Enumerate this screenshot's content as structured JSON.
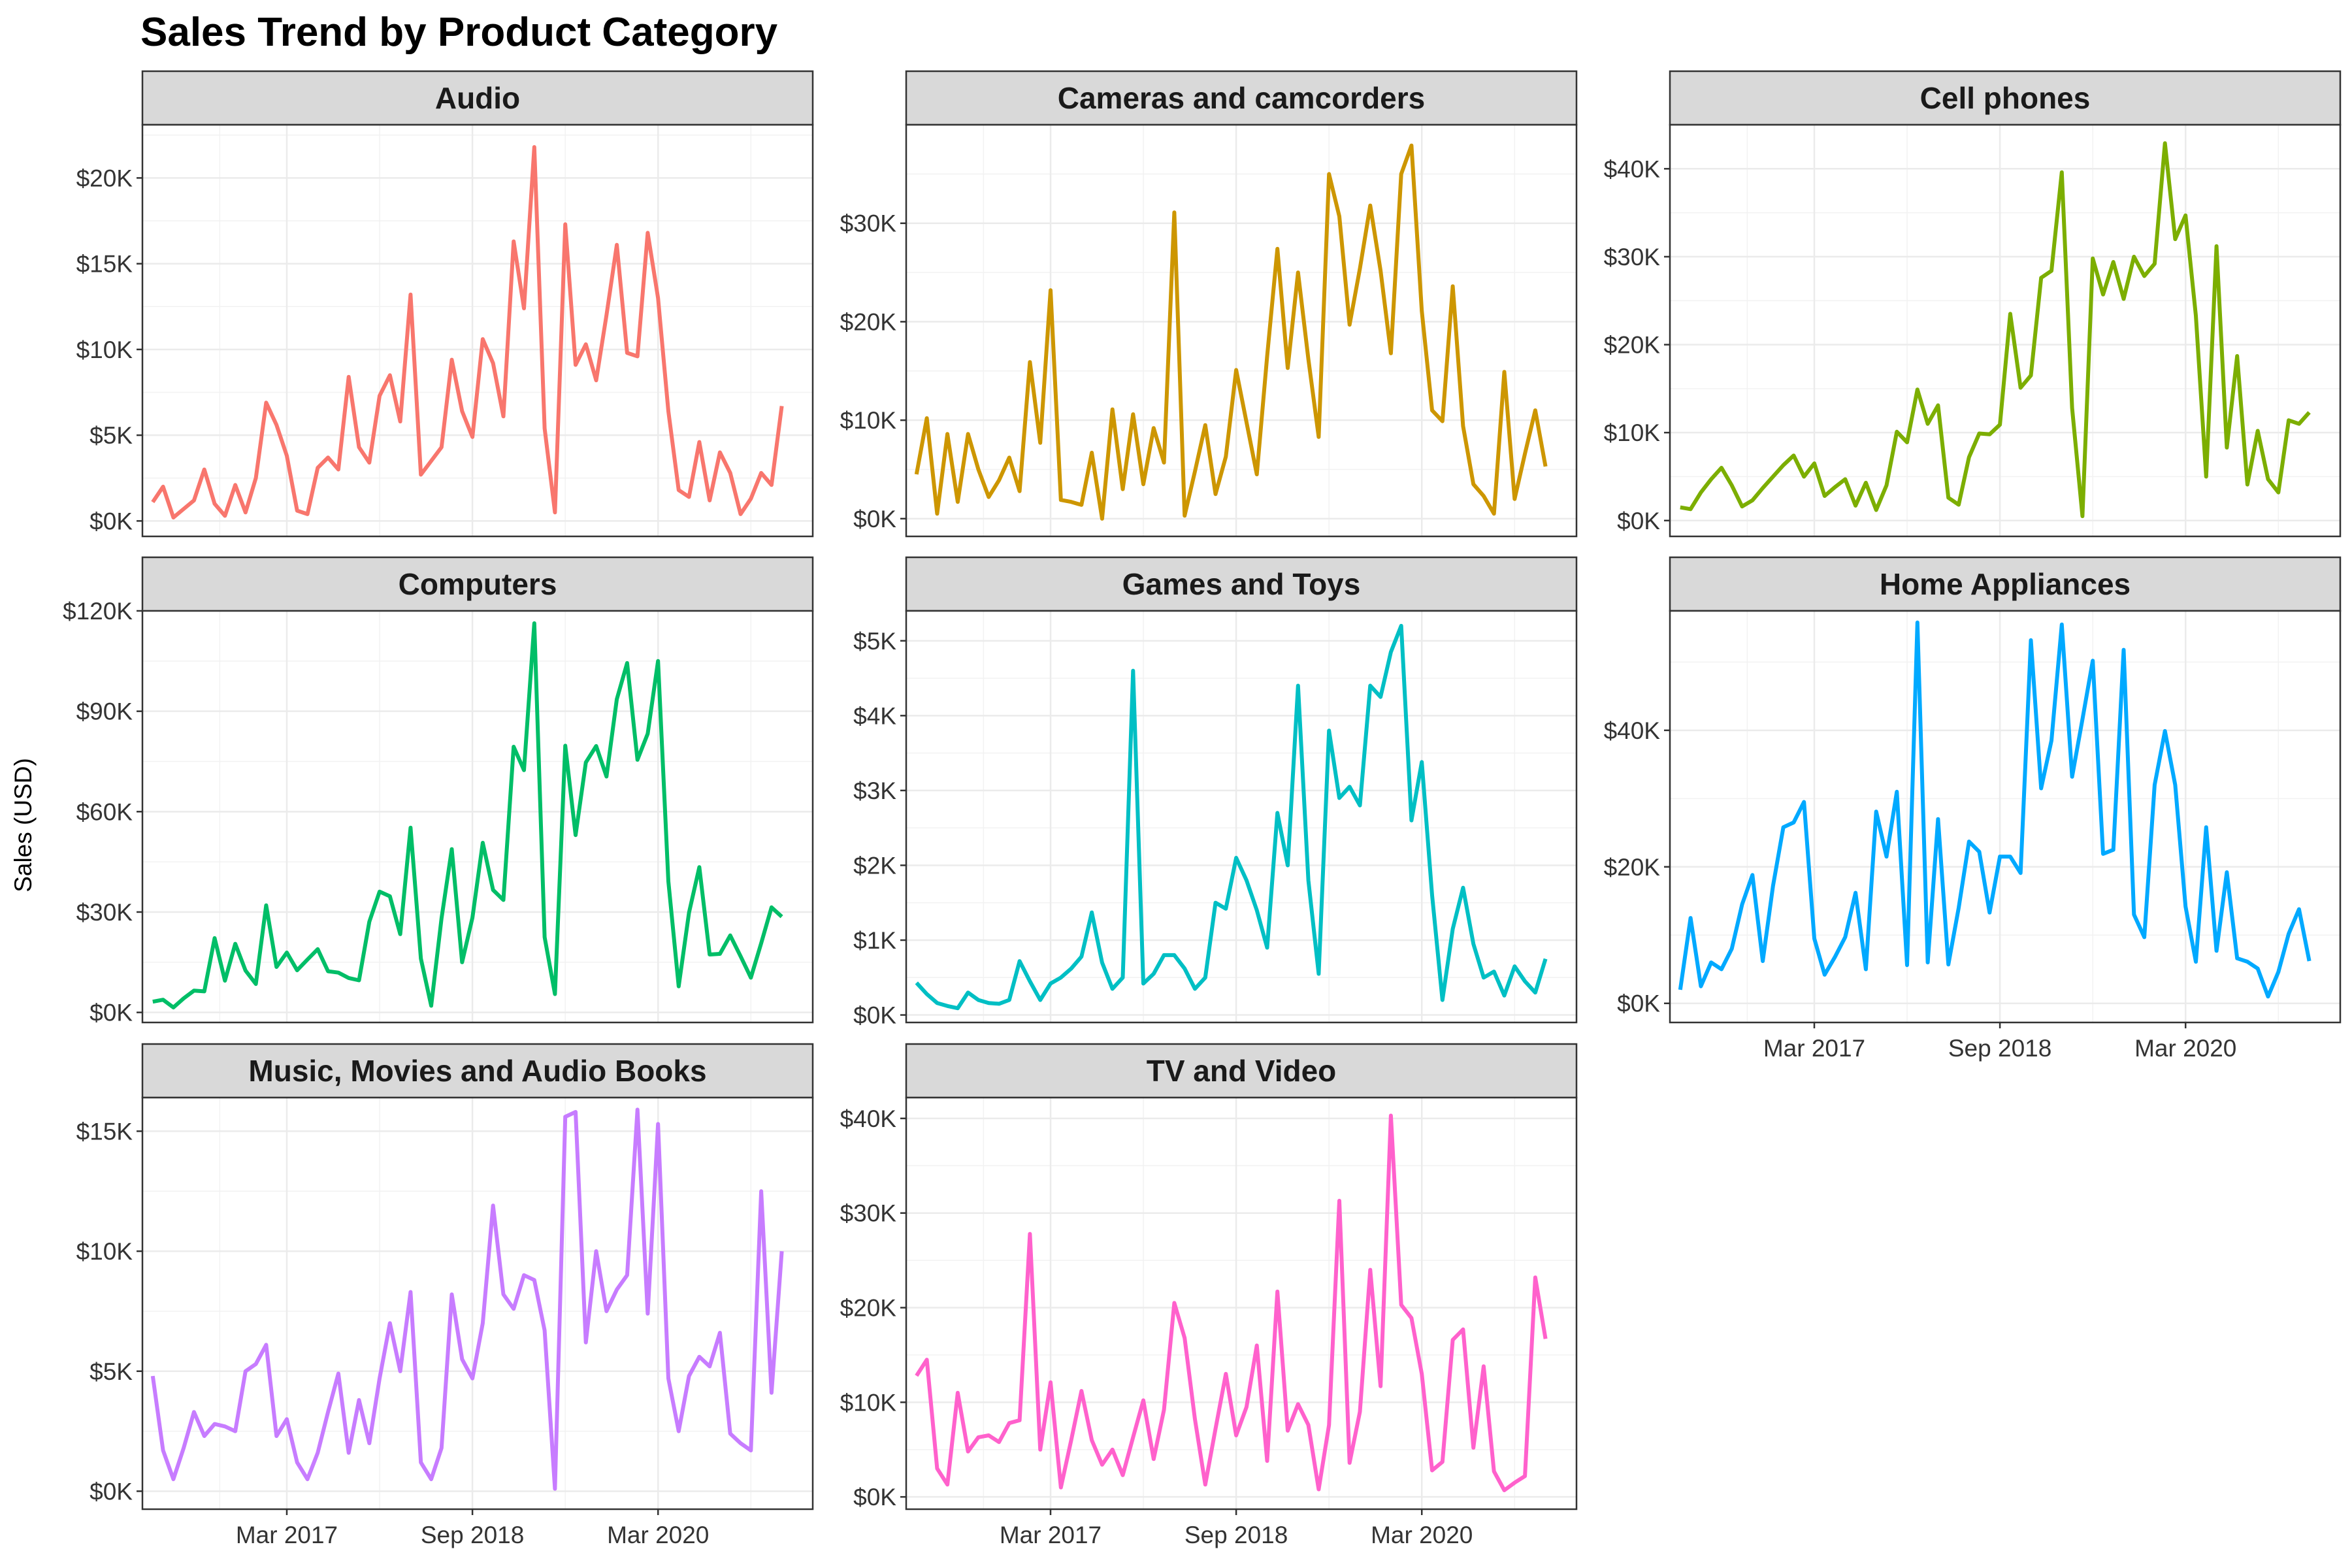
{
  "chart_data": {
    "type": "line",
    "title": "Sales Trend by Product Category",
    "xlabel": "",
    "ylabel": "Sales (USD)",
    "x_ticks": [
      "Mar 2017",
      "Sep 2018",
      "Mar 2020"
    ],
    "x_tick_months": [
      14,
      32,
      50
    ],
    "x_months": [
      0,
      65
    ],
    "grid": true,
    "legend": "none",
    "facets": [
      {
        "name": "Audio",
        "color": "#F8766D",
        "yticks": [
          0,
          5000,
          10000,
          15000,
          20000
        ],
        "ytick_labels": [
          "$0K",
          "$5K",
          "$10K",
          "$15K",
          "$20K"
        ],
        "ylim": [
          -900,
          23100
        ],
        "values": [
          1100,
          2000,
          200,
          700,
          1200,
          3000,
          1000,
          300,
          2100,
          500,
          2500,
          6900,
          5600,
          3800,
          600,
          400,
          3100,
          3700,
          3000,
          8400,
          4300,
          3400,
          7300,
          8500,
          5800,
          13200,
          2700,
          3500,
          4300,
          9400,
          6400,
          4900,
          10600,
          9200,
          6100,
          16300,
          12400,
          21800,
          5400,
          500,
          17300,
          9100,
          10300,
          8200,
          12000,
          16100,
          9800,
          9600,
          16800,
          13000,
          6400,
          1800,
          1400,
          4600,
          1200,
          4000,
          2800,
          400,
          1300,
          2800,
          2100,
          6700
        ]
      },
      {
        "name": "Cameras and camcorders",
        "color": "#CD9600",
        "yticks": [
          0,
          10000,
          20000,
          30000
        ],
        "ytick_labels": [
          "$0K",
          "$10K",
          "$20K",
          "$30K"
        ],
        "ylim": [
          -1800,
          40000
        ],
        "values": [
          4500,
          10200,
          500,
          8600,
          1700,
          8600,
          5000,
          2200,
          3900,
          6200,
          2800,
          15900,
          7700,
          23200,
          1900,
          1700,
          1400,
          6700,
          0,
          11100,
          3000,
          10600,
          3500,
          9200,
          5700,
          31100,
          300,
          4800,
          9500,
          2500,
          6300,
          15100,
          9800,
          4500,
          16500,
          27400,
          15300,
          25000,
          16200,
          8300,
          35000,
          30700,
          19700,
          25400,
          31800,
          25200,
          16800,
          35000,
          37900,
          21100,
          11000,
          9900,
          23600,
          9400,
          3500,
          2300,
          500,
          14900,
          2000,
          6600,
          11000,
          5300
        ]
      },
      {
        "name": "Cell phones",
        "color": "#7CAE00",
        "yticks": [
          0,
          10000,
          20000,
          30000,
          40000
        ],
        "ytick_labels": [
          "$0K",
          "$10K",
          "$20K",
          "$30K",
          "$40K"
        ],
        "ylim": [
          -1800,
          45000
        ],
        "values": [
          1500,
          1300,
          3200,
          4700,
          6000,
          4000,
          1600,
          2300,
          3700,
          5000,
          6300,
          7400,
          5000,
          6500,
          2800,
          3800,
          4700,
          1700,
          4300,
          1200,
          4000,
          10100,
          8900,
          14900,
          11000,
          13100,
          2600,
          1800,
          7200,
          9900,
          9800,
          10900,
          23500,
          15100,
          16500,
          27600,
          28400,
          39600,
          12800,
          500,
          29800,
          25700,
          29400,
          25200,
          30000,
          27800,
          29200,
          42900,
          32000,
          34700,
          23300,
          5000,
          31200,
          8300,
          18700,
          4100,
          10200,
          4700,
          3200,
          11400,
          11000,
          12300
        ]
      },
      {
        "name": "Computers",
        "color": "#00BE67",
        "yticks": [
          0,
          30000,
          60000,
          90000,
          120000
        ],
        "ytick_labels": [
          "$0K",
          "$30K",
          "$60K",
          "$90K",
          "$120K"
        ],
        "ylim": [
          -3000,
          120000
        ],
        "values": [
          3200,
          3800,
          1500,
          4200,
          6500,
          6300,
          22200,
          9500,
          20500,
          12500,
          8500,
          32000,
          13600,
          17900,
          12600,
          15800,
          18900,
          12300,
          11900,
          10300,
          9600,
          27100,
          36100,
          34700,
          23400,
          55200,
          16100,
          2000,
          28100,
          48800,
          15000,
          28300,
          50700,
          36600,
          33600,
          79400,
          72400,
          116300,
          22500,
          5500,
          79700,
          53000,
          74700,
          79600,
          70500,
          93600,
          104400,
          75500,
          83300,
          105000,
          39200,
          7800,
          29800,
          43400,
          17300,
          17500,
          23000,
          16800,
          10400,
          20700,
          31400,
          28600
        ]
      },
      {
        "name": "Games and Toys",
        "color": "#00BFC4",
        "yticks": [
          0,
          1000,
          2000,
          3000,
          4000,
          5000
        ],
        "ytick_labels": [
          "$0K",
          "$1K",
          "$2K",
          "$3K",
          "$4K",
          "$5K"
        ],
        "ylim": [
          -100,
          5400
        ],
        "values": [
          430,
          280,
          160,
          120,
          90,
          300,
          200,
          160,
          150,
          200,
          720,
          450,
          200,
          420,
          500,
          620,
          780,
          1370,
          700,
          350,
          500,
          4600,
          420,
          550,
          800,
          800,
          620,
          350,
          500,
          1500,
          1420,
          2100,
          1800,
          1400,
          900,
          2700,
          2000,
          4400,
          1800,
          550,
          3800,
          2900,
          3050,
          2800,
          4400,
          4250,
          4850,
          5200,
          2600,
          3380,
          1600,
          200,
          1150,
          1700,
          950,
          500,
          580,
          260,
          650,
          450,
          300,
          750
        ]
      },
      {
        "name": "Home Appliances",
        "color": "#00A9FF",
        "yticks": [
          0,
          20000,
          40000
        ],
        "ytick_labels": [
          "$0K",
          "$20K",
          "$40K"
        ],
        "ylim": [
          -2800,
          57500
        ],
        "values": [
          2000,
          12500,
          2500,
          6000,
          5000,
          8000,
          14500,
          18800,
          6200,
          17200,
          25800,
          26500,
          29500,
          9500,
          4200,
          6800,
          9700,
          16200,
          5000,
          28100,
          21500,
          31000,
          5600,
          55800,
          6000,
          27000,
          5700,
          14000,
          23700,
          22200,
          13300,
          21500,
          21500,
          19100,
          53200,
          31500,
          38500,
          55500,
          33200,
          41600,
          50200,
          21900,
          22500,
          51800,
          13000,
          9700,
          32000,
          39900,
          32000,
          14200,
          6100,
          25800,
          7700,
          19200,
          6600,
          6100,
          5100,
          1000,
          4600,
          10200,
          13800,
          6200
        ]
      },
      {
        "name": "Music, Movies and Audio Books",
        "color": "#C77CFF",
        "yticks": [
          0,
          5000,
          10000,
          15000
        ],
        "ytick_labels": [
          "$0K",
          "$5K",
          "$10K",
          "$15K"
        ],
        "ylim": [
          -750,
          16400
        ],
        "values": [
          4800,
          1700,
          500,
          1800,
          3300,
          2300,
          2800,
          2700,
          2500,
          5000,
          5300,
          6100,
          2300,
          3000,
          1200,
          500,
          1600,
          3300,
          4900,
          1600,
          3800,
          2000,
          4700,
          7000,
          5000,
          8300,
          1200,
          500,
          1800,
          8200,
          5500,
          4700,
          7000,
          11900,
          8200,
          7600,
          9000,
          8800,
          6700,
          100,
          15600,
          15800,
          6200,
          10000,
          7500,
          8400,
          9000,
          15900,
          7400,
          15300,
          4700,
          2500,
          4800,
          5600,
          5200,
          6600,
          2400,
          2000,
          1700,
          12500,
          4100,
          10000
        ]
      },
      {
        "name": "TV and Video",
        "color": "#FF61CC",
        "yticks": [
          0,
          10000,
          20000,
          30000,
          40000
        ],
        "ytick_labels": [
          "$0K",
          "$10K",
          "$20K",
          "$30K",
          "$40K"
        ],
        "ylim": [
          -1300,
          42200
        ],
        "values": [
          12800,
          14500,
          3000,
          1300,
          11000,
          4800,
          6300,
          6500,
          5800,
          7800,
          8100,
          27800,
          5000,
          12100,
          1000,
          6000,
          11200,
          6000,
          3400,
          5000,
          2300,
          6300,
          10200,
          4000,
          9200,
          20500,
          16800,
          8200,
          1300,
          7200,
          13000,
          6500,
          9500,
          16000,
          3800,
          21700,
          7000,
          9800,
          7600,
          800,
          7600,
          31300,
          3600,
          9000,
          24000,
          11700,
          40300,
          20300,
          18900,
          13000,
          2800,
          3700,
          16600,
          17700,
          5200,
          13800,
          2700,
          700,
          1500,
          2200,
          23200,
          16700
        ]
      }
    ]
  }
}
